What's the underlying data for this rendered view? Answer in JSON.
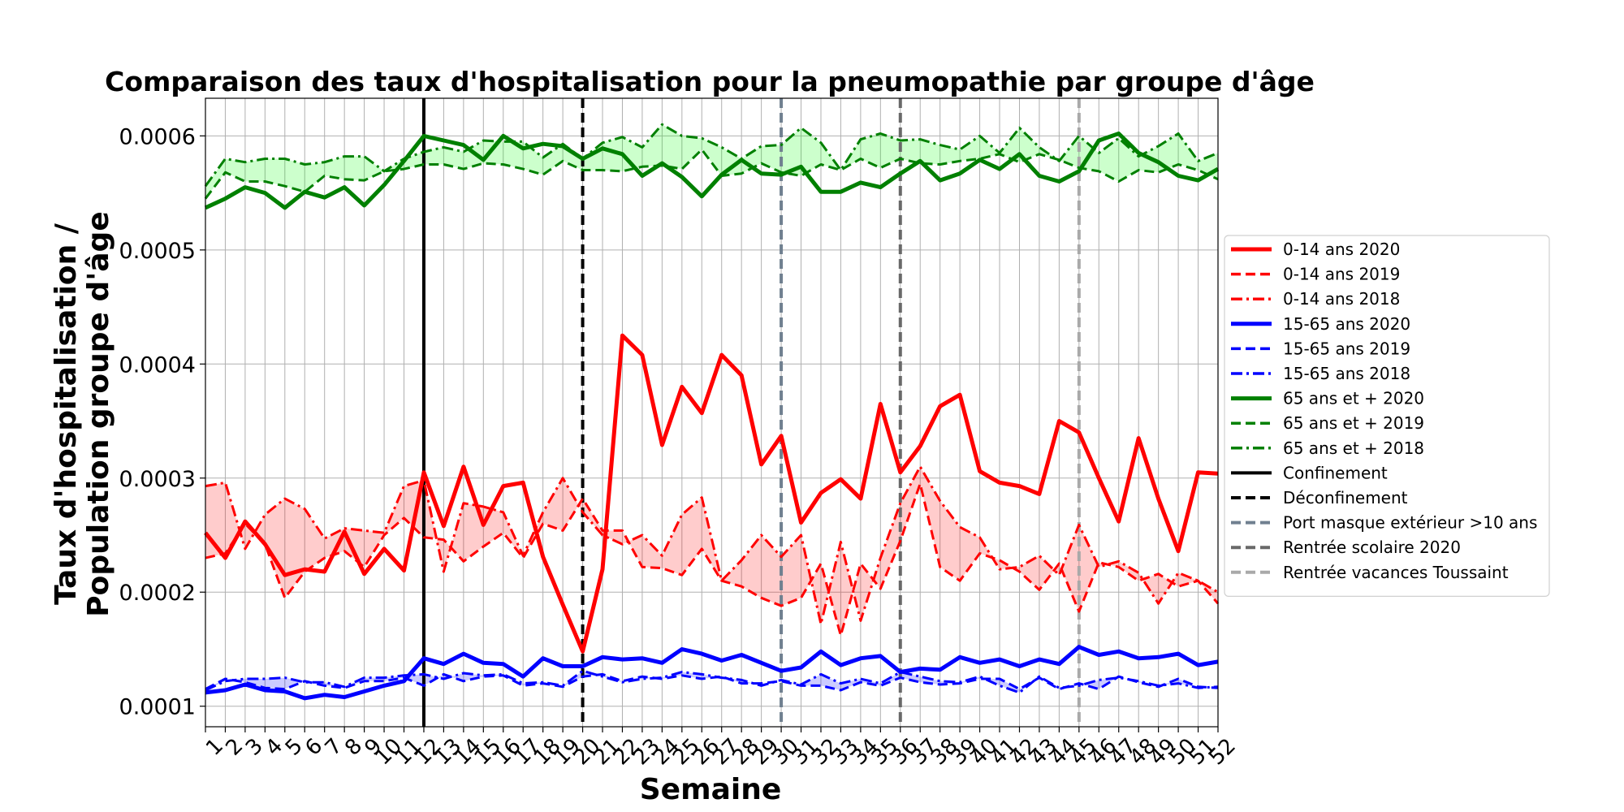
{
  "chart_data": {
    "type": "line",
    "title": "Comparaison des taux d'hospitalisation pour la pneumopathie par groupe d'âge",
    "xlabel": "Semaine",
    "ylabel": [
      "Taux d'hospitalisation /",
      "Population groupe d'âge"
    ],
    "x": [
      1,
      2,
      3,
      4,
      5,
      6,
      7,
      8,
      9,
      10,
      11,
      12,
      13,
      14,
      15,
      16,
      17,
      18,
      19,
      20,
      21,
      22,
      23,
      24,
      25,
      26,
      27,
      28,
      29,
      30,
      31,
      32,
      33,
      34,
      35,
      36,
      37,
      38,
      39,
      40,
      41,
      42,
      43,
      44,
      45,
      46,
      47,
      48,
      49,
      50,
      51,
      52
    ],
    "xlim": [
      1,
      52
    ],
    "ylim": [
      8.2e-05,
      0.000633
    ],
    "yticks": [
      0.0001,
      0.0002,
      0.0003,
      0.0004,
      0.0005,
      0.0006
    ],
    "ytick_labels": [
      "0.0001",
      "0.0002",
      "0.0003",
      "0.0004",
      "0.0005",
      "0.0006"
    ],
    "grid": true,
    "legend_position": "center-right",
    "series": [
      {
        "name": "0-14 ans 2020",
        "color": "#ff0000",
        "style": "solid",
        "width": 5,
        "values": [
          0.000252,
          0.00023,
          0.000262,
          0.000242,
          0.000215,
          0.00022,
          0.000218,
          0.000253,
          0.000216,
          0.000238,
          0.000219,
          0.000305,
          0.000258,
          0.00031,
          0.000259,
          0.000293,
          0.000296,
          0.000231,
          0.000189,
          0.000148,
          0.00022,
          0.000425,
          0.000408,
          0.000329,
          0.00038,
          0.000357,
          0.000408,
          0.00039,
          0.000312,
          0.000337,
          0.000261,
          0.000287,
          0.000299,
          0.000282,
          0.000365,
          0.000305,
          0.000328,
          0.000363,
          0.000373,
          0.000306,
          0.000296,
          0.000293,
          0.000286,
          0.00035,
          0.00034,
          0.0003,
          0.000262,
          0.000335,
          0.000282,
          0.000236,
          0.000305,
          0.000304
        ]
      },
      {
        "name": "0-14 ans 2019",
        "color": "#ff0000",
        "style": "dashed",
        "width": 3,
        "values": [
          0.00023,
          0.000234,
          0.00026,
          0.000242,
          0.000195,
          0.000218,
          0.00023,
          0.000236,
          0.000222,
          0.00025,
          0.000265,
          0.000248,
          0.000246,
          0.000227,
          0.00024,
          0.000252,
          0.00023,
          0.00026,
          0.000254,
          0.000282,
          0.000254,
          0.000254,
          0.000222,
          0.000221,
          0.000215,
          0.000238,
          0.00021,
          0.000205,
          0.000195,
          0.000188,
          0.000195,
          0.000225,
          0.000162,
          0.000225,
          0.000203,
          0.000245,
          0.000295,
          0.000222,
          0.00021,
          0.000234,
          0.000228,
          0.000218,
          0.000202,
          0.000225,
          0.000183,
          0.000226,
          0.000222,
          0.00021,
          0.000216,
          0.000205,
          0.00021,
          0.00019
        ]
      },
      {
        "name": "0-14 ans 2018",
        "color": "#ff0000",
        "style": "dashdot",
        "width": 3,
        "values": [
          0.000293,
          0.000296,
          0.000238,
          0.000268,
          0.000282,
          0.000273,
          0.000247,
          0.000256,
          0.000254,
          0.000252,
          0.000293,
          0.000298,
          0.000218,
          0.000278,
          0.000275,
          0.00027,
          0.000232,
          0.00027,
          0.0003,
          0.00027,
          0.00025,
          0.000242,
          0.00025,
          0.000232,
          0.000268,
          0.000283,
          0.00021,
          0.000228,
          0.00025,
          0.000231,
          0.00025,
          0.000172,
          0.000244,
          0.000175,
          0.00023,
          0.000278,
          0.00031,
          0.00028,
          0.000257,
          0.000248,
          0.00022,
          0.000222,
          0.000232,
          0.000215,
          0.000259,
          0.000222,
          0.000227,
          0.000217,
          0.00019,
          0.000217,
          0.00021,
          0.0002
        ]
      },
      {
        "name": "15-65 ans 2020",
        "color": "#0000ff",
        "style": "solid",
        "width": 5,
        "values": [
          0.000112,
          0.000114,
          0.000119,
          0.000114,
          0.000113,
          0.000107,
          0.00011,
          0.000108,
          0.000113,
          0.000118,
          0.000122,
          0.000142,
          0.000137,
          0.000146,
          0.000138,
          0.000137,
          0.000126,
          0.000142,
          0.000135,
          0.000135,
          0.000143,
          0.000141,
          0.000142,
          0.000138,
          0.00015,
          0.000146,
          0.00014,
          0.000145,
          0.000138,
          0.000131,
          0.000134,
          0.000148,
          0.000136,
          0.000142,
          0.000144,
          0.00013,
          0.000133,
          0.000132,
          0.000143,
          0.000138,
          0.000141,
          0.000135,
          0.000141,
          0.000137,
          0.000152,
          0.000145,
          0.000148,
          0.000142,
          0.000143,
          0.000146,
          0.000136,
          0.000139
        ]
      },
      {
        "name": "15-65 ans 2019",
        "color": "#0000ff",
        "style": "dashed",
        "width": 3,
        "values": [
          0.000115,
          0.000124,
          0.000121,
          0.000116,
          0.000115,
          0.000122,
          0.000118,
          0.000116,
          0.000122,
          0.000122,
          0.000125,
          0.000118,
          0.000128,
          0.000122,
          0.000126,
          0.000127,
          0.000118,
          0.00012,
          0.000117,
          0.000126,
          0.000128,
          0.000122,
          0.000126,
          0.000124,
          0.000127,
          0.000124,
          0.000126,
          0.00012,
          0.00012,
          0.000122,
          0.000118,
          0.000118,
          0.000114,
          0.000121,
          0.000118,
          0.000125,
          0.000121,
          0.000119,
          0.00012,
          0.000124,
          0.000124,
          0.000115,
          0.000125,
          0.000115,
          0.00012,
          0.000115,
          0.000126,
          0.000121,
          0.000117,
          0.000124,
          0.000117,
          0.000116
        ]
      },
      {
        "name": "15-65 ans 2018",
        "color": "#0000ff",
        "style": "dashdot",
        "width": 3,
        "values": [
          0.000114,
          0.000122,
          0.000124,
          0.000124,
          0.000125,
          0.000121,
          0.000121,
          0.000117,
          0.000125,
          0.000125,
          0.000127,
          0.000128,
          0.000124,
          0.000129,
          0.000127,
          0.000128,
          0.00012,
          0.000121,
          0.000118,
          0.000131,
          0.000126,
          0.000121,
          0.000124,
          0.000125,
          0.00013,
          0.000128,
          0.000125,
          0.000123,
          0.000118,
          0.000123,
          0.000119,
          0.000128,
          0.00012,
          0.000124,
          0.00012,
          0.00013,
          0.000126,
          0.000122,
          0.000121,
          0.000126,
          0.000118,
          0.000112,
          0.000126,
          0.000116,
          0.000118,
          0.000123,
          0.000125,
          0.000122,
          0.000118,
          0.00012,
          0.000116,
          0.000117
        ]
      },
      {
        "name": "65 ans et + 2020",
        "color": "#008000",
        "style": "solid",
        "width": 5,
        "values": [
          0.000537,
          0.000545,
          0.000555,
          0.00055,
          0.000537,
          0.000551,
          0.000546,
          0.000555,
          0.000539,
          0.000557,
          0.000578,
          0.0006,
          0.000596,
          0.000592,
          0.000579,
          0.0006,
          0.000589,
          0.000593,
          0.000591,
          0.00058,
          0.000589,
          0.000584,
          0.000565,
          0.000576,
          0.000564,
          0.000547,
          0.000566,
          0.000579,
          0.000567,
          0.000566,
          0.000573,
          0.000551,
          0.000551,
          0.000559,
          0.000555,
          0.000567,
          0.000578,
          0.000561,
          0.000567,
          0.000579,
          0.000571,
          0.000584,
          0.000565,
          0.00056,
          0.000569,
          0.000596,
          0.000602,
          0.000585,
          0.000577,
          0.000565,
          0.000561,
          0.000571
        ]
      },
      {
        "name": "65 ans et + 2019",
        "color": "#008000",
        "style": "dashed",
        "width": 3,
        "values": [
          0.000545,
          0.000568,
          0.00056,
          0.00056,
          0.000556,
          0.000551,
          0.000565,
          0.000562,
          0.000561,
          0.000569,
          0.000571,
          0.000575,
          0.000575,
          0.000571,
          0.000576,
          0.000575,
          0.000571,
          0.000566,
          0.000578,
          0.00057,
          0.00057,
          0.000569,
          0.000573,
          0.000574,
          0.000571,
          0.000588,
          0.000565,
          0.000567,
          0.000576,
          0.000568,
          0.000565,
          0.000575,
          0.00057,
          0.00058,
          0.000572,
          0.00058,
          0.000576,
          0.000575,
          0.000578,
          0.00058,
          0.000584,
          0.000577,
          0.000584,
          0.000579,
          0.000572,
          0.000569,
          0.00056,
          0.00057,
          0.000568,
          0.000575,
          0.00057,
          0.000562
        ]
      },
      {
        "name": "65 ans et + 2018",
        "color": "#008000",
        "style": "dashdot",
        "width": 3,
        "values": [
          0.000556,
          0.00058,
          0.000577,
          0.00058,
          0.00058,
          0.000575,
          0.000577,
          0.000582,
          0.000582,
          0.000569,
          0.00058,
          0.000586,
          0.00059,
          0.000586,
          0.000596,
          0.000595,
          0.000595,
          0.000581,
          0.000593,
          0.00058,
          0.000594,
          0.000599,
          0.00059,
          0.00061,
          0.0006,
          0.000598,
          0.00059,
          0.00058,
          0.000591,
          0.000592,
          0.000607,
          0.000594,
          0.00057,
          0.000597,
          0.000602,
          0.000596,
          0.000597,
          0.000592,
          0.000588,
          0.0006,
          0.000585,
          0.000607,
          0.00059,
          0.000578,
          0.0006,
          0.000585,
          0.000598,
          0.000582,
          0.000591,
          0.000602,
          0.000578,
          0.000585
        ]
      }
    ],
    "fill_between": [
      {
        "between": [
          "0-14 ans 2019",
          "0-14 ans 2018"
        ],
        "color": "#ff0000",
        "alpha": 0.2
      },
      {
        "between": [
          "15-65 ans 2019",
          "15-65 ans 2018"
        ],
        "color": "#0000ff",
        "alpha": 0.2
      },
      {
        "between": [
          "65 ans et + 2019",
          "65 ans et + 2018"
        ],
        "color": "#00ff00",
        "alpha": 0.2
      }
    ],
    "vlines": [
      {
        "name": "Confinement",
        "x": 12,
        "color": "#000000",
        "style": "solid"
      },
      {
        "name": "Déconfinement",
        "x": 20,
        "color": "#000000",
        "style": "dashed"
      },
      {
        "name": "Port masque extérieur >10 ans",
        "x": 30,
        "color": "#708090",
        "style": "dashed"
      },
      {
        "name": "Rentrée scolaire 2020",
        "x": 36,
        "color": "#696969",
        "style": "dashed"
      },
      {
        "name": "Rentrée vacances Toussaint",
        "x": 45,
        "color": "#a9a9a9",
        "style": "dashed"
      }
    ]
  }
}
